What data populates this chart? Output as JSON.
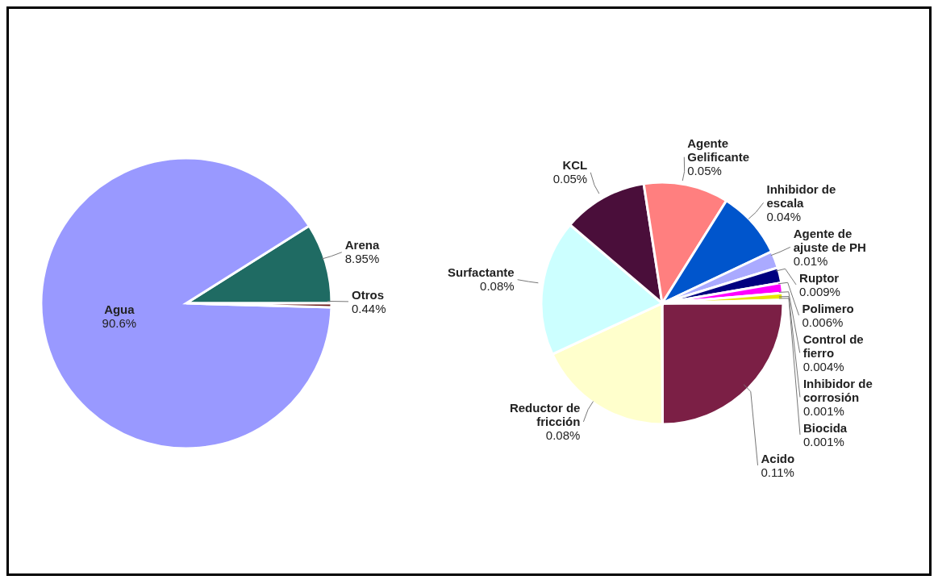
{
  "chart_data": [
    {
      "type": "pie",
      "categories": [
        "Arena",
        "Agua",
        "Otros"
      ],
      "values": [
        8.95,
        90.6,
        0.44
      ],
      "colors": [
        "#1f6b63",
        "#9999ff",
        "#6b1a1a"
      ],
      "value_labels": [
        "8.95%",
        "90.6%",
        "0.44%"
      ]
    },
    {
      "type": "pie",
      "categories": [
        "Acido",
        "Reductor de fricción",
        "Surfactante",
        "KCL",
        "Agente Gelificante",
        "Inhibidor de escala",
        "Agente de ajuste de PH",
        "Ruptor",
        "Polimero",
        "Control de fierro",
        "Inhibidor de corrosión",
        "Biocida"
      ],
      "values": [
        0.11,
        0.08,
        0.08,
        0.05,
        0.05,
        0.04,
        0.01,
        0.009,
        0.006,
        0.004,
        0.001,
        0.001
      ],
      "colors": [
        "#7b1f45",
        "#ffffcc",
        "#ccffff",
        "#4a0e3a",
        "#ff7f7f",
        "#0055cc",
        "#aaaaff",
        "#000080",
        "#ff00ff",
        "#e6e600",
        "#00cccc",
        "#800080"
      ],
      "value_labels": [
        "0.11%",
        "0.08%",
        "0.08%",
        "0.05%",
        "0.05%",
        "0.04%",
        "0.01%",
        "0.009%",
        "0.006%",
        "0.004%",
        "0.001%",
        "0.001%"
      ]
    }
  ]
}
